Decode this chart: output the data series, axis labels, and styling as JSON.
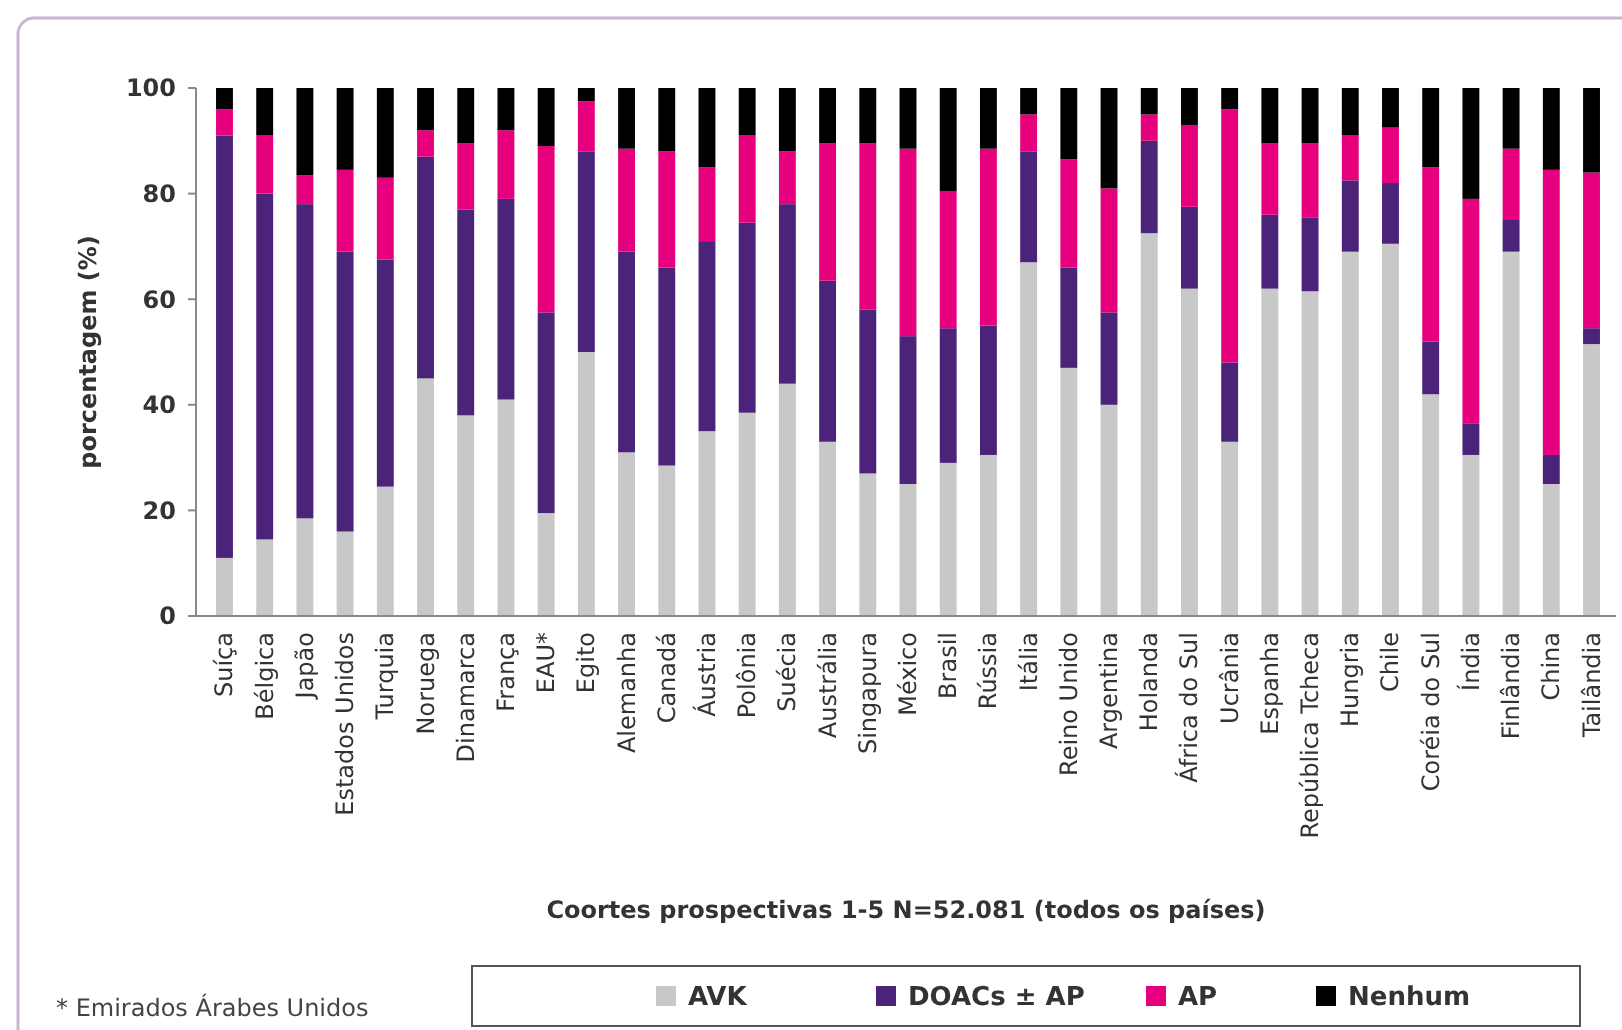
{
  "chart_data": {
    "type": "bar",
    "stacked": true,
    "xlabel": "Coortes prospectivas 1-5 N=52.081 (todos os países)",
    "ylabel": "porcentagem (%)",
    "categories": [
      "Suíça",
      "Bélgica",
      "Japão",
      "Estados Unidos",
      "Turquia",
      "Noruega",
      "Dinamarca",
      "França",
      "EAU*",
      "Egito",
      "Alemanha",
      "Canadá",
      "Áustria",
      "Polônia",
      "Suécia",
      "Austrália",
      "Singapura",
      "México",
      "Brasil",
      "Rússia",
      "Itália",
      "Reino Unido",
      "Argentina",
      "Holanda",
      "África do Sul",
      "Ucrânia",
      "Espanha",
      "República Tcheca",
      "Hungria",
      "Chile",
      "Coréia do Sul",
      "Índia",
      "Finlândia",
      "China",
      "Tailândia"
    ],
    "series": [
      {
        "name": "AVK",
        "color": "#c8c8c8",
        "values": [
          11,
          14.5,
          18.5,
          16,
          24.5,
          45,
          38,
          41,
          19.5,
          50,
          31,
          28.5,
          35,
          38.5,
          44,
          33,
          27,
          25,
          29,
          30.5,
          67,
          47,
          40,
          72.5,
          62,
          33,
          62,
          61.5,
          69,
          70.5,
          42,
          30.5,
          69,
          25,
          51.5
        ]
      },
      {
        "name": "DOACs ± AP",
        "color": "#4b2379",
        "values": [
          80,
          65.5,
          59.5,
          53,
          43,
          42,
          39,
          38,
          38,
          38,
          38,
          37.5,
          36,
          36,
          34,
          30.5,
          31,
          28,
          25.5,
          24.5,
          21,
          19,
          17.5,
          17.5,
          15.5,
          15,
          14,
          14,
          13.5,
          11.5,
          10,
          6,
          6,
          5.5,
          3
        ]
      },
      {
        "name": "AP",
        "color": "#e6007e",
        "values": [
          5,
          11,
          5.5,
          15.5,
          15.5,
          5,
          12.5,
          13,
          31.5,
          9.5,
          19.5,
          22,
          14,
          16.5,
          10,
          26,
          31.5,
          35.5,
          26,
          33.5,
          7,
          20.5,
          23.5,
          5,
          15.5,
          48,
          13.5,
          14,
          8.5,
          10.5,
          33,
          42.5,
          13.5,
          54,
          29.5
        ]
      },
      {
        "name": "Nenhum",
        "color": "#000000",
        "values": [
          4,
          9,
          16.5,
          15.5,
          17,
          8,
          10.5,
          8,
          11,
          2.5,
          11.5,
          12,
          15,
          9,
          12,
          10.5,
          10.5,
          11.5,
          19.5,
          11.5,
          5,
          13.5,
          19,
          5,
          7,
          4,
          10.5,
          10.5,
          9,
          7.5,
          15,
          21,
          11.5,
          15.5,
          16
        ]
      }
    ],
    "ylim": [
      0,
      100
    ],
    "yticks": [
      0,
      20,
      40,
      60,
      80,
      100
    ],
    "legend": "bottom",
    "annotations": [
      "* Emirados Árabes Unidos"
    ]
  }
}
